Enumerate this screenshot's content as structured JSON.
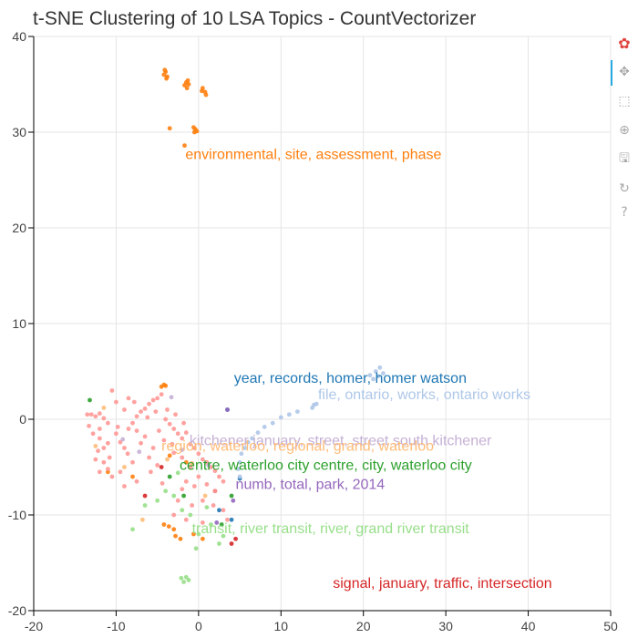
{
  "chart_data": {
    "type": "scatter",
    "title": "t-SNE Clustering of 10 LSA Topics - CountVectorizer",
    "xlim": [
      -20,
      50
    ],
    "ylim": [
      -20,
      40
    ],
    "xticks": [
      -20,
      -10,
      0,
      10,
      20,
      30,
      40,
      50
    ],
    "yticks": [
      -20,
      -10,
      0,
      10,
      20,
      30,
      40
    ],
    "grid": true,
    "colors": {
      "orange": "#ff7f0e",
      "dark_blue": "#1f77b4",
      "light_blue": "#aec7e8",
      "green": "#2ca02c",
      "light_green": "#98df8a",
      "red": "#d62728",
      "salmon": "#ff9896",
      "purple": "#9467bd",
      "lavender": "#c5b0d5",
      "peach": "#ffbb78"
    },
    "series": [
      {
        "color": "#ff7f0e",
        "points": [
          [
            -4,
            36.3
          ],
          [
            -4.2,
            36
          ],
          [
            -3.8,
            35.8
          ],
          [
            -4.1,
            36.5
          ],
          [
            -3.9,
            35.6
          ],
          [
            -1.5,
            35.2
          ],
          [
            -1.2,
            35.0
          ],
          [
            -1.7,
            34.9
          ],
          [
            -1.3,
            35.4
          ],
          [
            -1.4,
            34.6
          ],
          [
            0.5,
            34.6
          ],
          [
            0.8,
            34.2
          ],
          [
            0.9,
            33.9
          ],
          [
            0.4,
            34.3
          ],
          [
            -0.4,
            30.3
          ],
          [
            -0.6,
            30.5
          ],
          [
            -0.2,
            30.1
          ],
          [
            -0.5,
            30.0
          ],
          [
            -3.5,
            30.4
          ],
          [
            -1.7,
            28.6
          ],
          [
            -4.5,
            3.4
          ],
          [
            -4.2,
            3.6
          ],
          [
            -4.0,
            3.5
          ],
          [
            -1.5,
            -4.5
          ],
          [
            -3.6,
            -11.2
          ],
          [
            -4.2,
            -11.0
          ],
          [
            -3.0,
            -11.5
          ],
          [
            -2.2,
            -12.5
          ],
          [
            -2.8,
            -12.2
          ],
          [
            -0.6,
            -12.0
          ],
          [
            0.5,
            -12.5
          ],
          [
            -8.0,
            -6.0
          ],
          [
            -11.0,
            -5.5
          ],
          [
            -3.5,
            -3.8
          ]
        ]
      },
      {
        "color": "#1f77b4",
        "points": [
          [
            3.5,
            1.0
          ],
          [
            5,
            -6.2
          ],
          [
            2.5,
            -9.5
          ],
          [
            4.0,
            -10.5
          ]
        ]
      },
      {
        "color": "#aec7e8",
        "points": [
          [
            21.5,
            5.0
          ],
          [
            22.0,
            5.4
          ],
          [
            20.8,
            4.6
          ],
          [
            22.4,
            4.8
          ],
          [
            21.2,
            4.2
          ],
          [
            21.8,
            4.5
          ],
          [
            14.0,
            1.5
          ],
          [
            13.8,
            1.2
          ],
          [
            14.3,
            1.6
          ],
          [
            12.0,
            0.8
          ],
          [
            11.0,
            0.5
          ],
          [
            10.0,
            0.2
          ],
          [
            9.0,
            -0.4
          ],
          [
            8.0,
            -0.8
          ],
          [
            7.2,
            -1.4
          ],
          [
            6.5,
            -2.0
          ],
          [
            6.0,
            -2.4
          ],
          [
            5.6,
            -3.0
          ],
          [
            5.2,
            -3.6
          ],
          [
            5.0,
            -4.5
          ],
          [
            4.8,
            -5.2
          ],
          [
            5.0,
            -6.0
          ]
        ]
      },
      {
        "color": "#2ca02c",
        "points": [
          [
            -13.2,
            2.0
          ],
          [
            -3.5,
            -6.0
          ],
          [
            4.0,
            -8.0
          ],
          [
            2.8,
            -11.0
          ],
          [
            -1.8,
            -8.0
          ]
        ]
      },
      {
        "color": "#98df8a",
        "points": [
          [
            -1.5,
            -16.5
          ],
          [
            -1.8,
            -17.0
          ],
          [
            -1.2,
            -16.8
          ],
          [
            -2.1,
            -16.6
          ],
          [
            -8.0,
            -11.5
          ],
          [
            -5.0,
            -8.5
          ],
          [
            -4.0,
            -7.5
          ],
          [
            -3.0,
            -8.0
          ],
          [
            -2.0,
            -9.5
          ],
          [
            -1.0,
            -10.0
          ],
          [
            0.0,
            -12.0
          ],
          [
            1.5,
            -11.0
          ],
          [
            -0.3,
            -13.5
          ],
          [
            2.5,
            -13.0
          ],
          [
            3.0,
            -12.2
          ],
          [
            -6.5,
            -9.0
          ],
          [
            -2.5,
            -5.6
          ],
          [
            1.0,
            -9.2
          ]
        ]
      },
      {
        "color": "#d62728",
        "points": [
          [
            -6.5,
            -8.0
          ],
          [
            4.5,
            -12.5
          ],
          [
            4.0,
            -13.0
          ],
          [
            2.0,
            -7.5
          ],
          [
            -4.5,
            -5.0
          ]
        ]
      },
      {
        "color": "#ff9896",
        "points": [
          [
            -13.5,
            0.5
          ],
          [
            -13.0,
            0.5
          ],
          [
            -12.5,
            0.3
          ],
          [
            -12.0,
            0.6
          ],
          [
            -11.5,
            0.1
          ],
          [
            -11.0,
            -0.4
          ],
          [
            -12.8,
            -1.5
          ],
          [
            -12.0,
            -2.0
          ],
          [
            -11.5,
            -3.0
          ],
          [
            -12.5,
            -4.2
          ],
          [
            -11.5,
            -4.5
          ],
          [
            -11.0,
            -5.2
          ],
          [
            -10.5,
            -6.0
          ],
          [
            -12.0,
            -5.5
          ],
          [
            -10.0,
            -1.5
          ],
          [
            -9.5,
            -2.4
          ],
          [
            -9.0,
            -3.0
          ],
          [
            -8.5,
            -1.0
          ],
          [
            -8.0,
            -0.4
          ],
          [
            -7.5,
            0.3
          ],
          [
            -7.0,
            0.8
          ],
          [
            -6.5,
            1.1
          ],
          [
            -6.0,
            1.6
          ],
          [
            -5.5,
            2.0
          ],
          [
            -5.0,
            2.2
          ],
          [
            -4.5,
            2.6
          ],
          [
            -4.0,
            0.0
          ],
          [
            -3.5,
            -0.5
          ],
          [
            -3.0,
            -1.0
          ],
          [
            -2.5,
            -1.5
          ],
          [
            -2.0,
            -2.0
          ],
          [
            -1.5,
            -1.4
          ],
          [
            -1.0,
            -2.6
          ],
          [
            -0.5,
            -3.0
          ],
          [
            0.0,
            -3.6
          ],
          [
            0.5,
            -4.2
          ],
          [
            1.0,
            -4.5
          ],
          [
            1.5,
            -5.0
          ],
          [
            2.0,
            -5.4
          ],
          [
            2.5,
            -6.0
          ],
          [
            3.0,
            -6.5
          ],
          [
            -9.0,
            1.0
          ],
          [
            -8.5,
            2.2
          ],
          [
            -10.0,
            1.8
          ],
          [
            -10.5,
            3.0
          ],
          [
            -6.5,
            -1.8
          ],
          [
            -7.0,
            -2.5
          ],
          [
            -5.5,
            -3.0
          ],
          [
            -4.8,
            -1.2
          ],
          [
            -6.0,
            -4.0
          ],
          [
            -8.0,
            -4.5
          ],
          [
            -9.5,
            -5.5
          ],
          [
            -9.0,
            -7.0
          ],
          [
            -7.5,
            -6.5
          ],
          [
            -5.0,
            -4.8
          ],
          [
            -3.0,
            -3.5
          ],
          [
            -2.0,
            -4.0
          ],
          [
            -1.0,
            -5.0
          ],
          [
            0.0,
            -6.0
          ],
          [
            1.0,
            -6.8
          ],
          [
            2.0,
            -7.5
          ],
          [
            -0.5,
            -7.0
          ],
          [
            -1.5,
            -6.5
          ],
          [
            -12.0,
            -1.0
          ],
          [
            -11.0,
            -2.5
          ],
          [
            -10.8,
            -4.0
          ],
          [
            -7.5,
            -1.2
          ],
          [
            -6.2,
            0.2
          ],
          [
            -3.8,
            1.0
          ],
          [
            -2.8,
            0.5
          ],
          [
            -1.8,
            -0.4
          ],
          [
            -4.2,
            -2.2
          ],
          [
            -3.2,
            -2.6
          ],
          [
            -5.2,
            0.8
          ],
          [
            -7.8,
            1.8
          ],
          [
            -2.5,
            -8.5
          ],
          [
            -0.8,
            -9.0
          ],
          [
            0.5,
            -8.5
          ],
          [
            1.8,
            -9.0
          ],
          [
            3.0,
            -9.5
          ],
          [
            3.5,
            -10.5
          ],
          [
            -3.0,
            -10.0
          ],
          [
            -1.5,
            -10.5
          ],
          [
            0.5,
            -10.8
          ],
          [
            -8.6,
            -3.6
          ],
          [
            -9.8,
            -0.8
          ],
          [
            -12.2,
            -3.3
          ],
          [
            -13.3,
            -0.7
          ],
          [
            -5.8,
            -5.5
          ],
          [
            -4.4,
            -6.7
          ],
          [
            -2.0,
            -7.3
          ]
        ]
      },
      {
        "color": "#9467bd",
        "points": [
          [
            3.5,
            1.0
          ],
          [
            2.2,
            -10.8
          ],
          [
            4.2,
            -8.5
          ]
        ]
      },
      {
        "color": "#c5b0d5",
        "points": [
          [
            -3.3,
            2.3
          ],
          [
            -2.0,
            -3.2
          ],
          [
            1.2,
            -4.8
          ],
          [
            -7.2,
            -3.4
          ],
          [
            -9.2,
            -2.1
          ]
        ]
      },
      {
        "color": "#ffbb78",
        "points": [
          [
            -12.5,
            -2.8
          ],
          [
            -9.0,
            -5.0
          ],
          [
            -3.8,
            -4.2
          ],
          [
            -0.8,
            -4.6
          ],
          [
            0.8,
            -8.0
          ],
          [
            -6.8,
            -10.5
          ],
          [
            -11.5,
            1.2
          ]
        ]
      }
    ],
    "cluster_labels": [
      {
        "text": "environmental, site, assessment, phase",
        "color": "#ff7f0e"
      },
      {
        "text": "year, records, homer, homer watson",
        "color": "#1f77b4"
      },
      {
        "text": "file, ontario, works, ontario works",
        "color": "#aec7e8"
      },
      {
        "text": "kitchener january, street, street south kitchener",
        "color": "#c5b0d5"
      },
      {
        "text": "region, waterloo, regional, grand, waterloo",
        "color": "#ffbb78"
      },
      {
        "text": "centre, waterloo city centre, city, waterloo city",
        "color": "#2ca02c"
      },
      {
        "text": "numb, total, park, 2014",
        "color": "#9467bd"
      },
      {
        "text": "transit, river transit, river, grand river transit",
        "color": "#98df8a"
      },
      {
        "text": "signal, january, traffic, intersection",
        "color": "#d62728"
      }
    ]
  },
  "toolbar": {
    "tools": [
      {
        "name": "bokeh-logo-icon",
        "glyph": "✿",
        "interactable": false
      },
      {
        "name": "pan-tool-icon",
        "glyph": "✥",
        "interactable": true
      },
      {
        "name": "box-zoom-tool-icon",
        "glyph": "⬚",
        "interactable": true
      },
      {
        "name": "wheel-zoom-tool-icon",
        "glyph": "⊕",
        "interactable": true
      },
      {
        "name": "save-tool-icon",
        "glyph": "🖫",
        "interactable": true
      },
      {
        "name": "reset-tool-icon",
        "glyph": "↻",
        "interactable": true
      },
      {
        "name": "help-tool-icon",
        "glyph": "?",
        "interactable": true
      }
    ]
  }
}
